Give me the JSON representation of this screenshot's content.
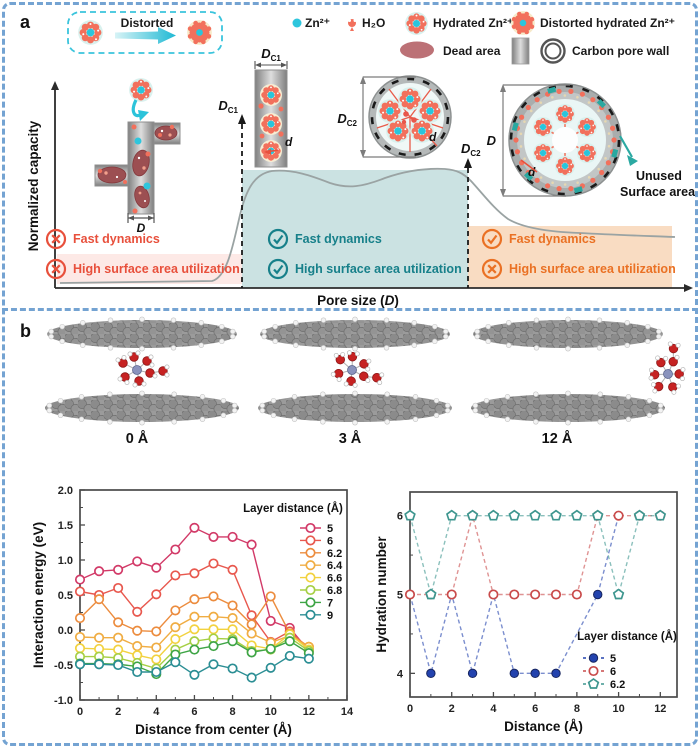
{
  "figure": {
    "border_color": "#74a3d2",
    "background": "#ffffff"
  },
  "panel_a": {
    "label": "a",
    "distorted_label": "Distorted",
    "legend": {
      "zn": "Zn²⁺",
      "h2o": "H₂O",
      "hydrated": "Hydrated Zn²⁺",
      "distorted_hydrated": "Distorted hydrated Zn²⁺",
      "dead_area": "Dead area",
      "carbon_pore_wall": "Carbon pore wall"
    },
    "y_axis_label": "Normalized capacity",
    "x_axis_label": {
      "pre": "Pore size (",
      "d": "D",
      "post": ")"
    },
    "annotations": {
      "dc1": {
        "d": "D",
        "sub": "C1"
      },
      "dc2": {
        "d": "D",
        "sub": "C2"
      },
      "d_pore": "D",
      "d_gap": "d",
      "unused_line1": "Unused",
      "unused_line2": "Surface area"
    },
    "regions": {
      "left": {
        "fast": "Fast dynamics",
        "surface": "High surface area utilization",
        "fast_pass": false,
        "surface_pass": false,
        "color": "#e8503c"
      },
      "middle": {
        "fast": "Fast dynamics",
        "surface": "High surface area utilization",
        "fast_pass": true,
        "surface_pass": true,
        "color": "#17808a"
      },
      "right": {
        "fast": "Fast dynamics",
        "surface": "High surface area utilization",
        "fast_pass": true,
        "surface_pass": false,
        "color": "#ea7124"
      }
    },
    "colors": {
      "teal_region": "#cbe2e2",
      "orange_region": "#f9dcc2",
      "pink_region": "#fde9e6",
      "curve": "#9aa3a3",
      "zn": "#2ec6dd",
      "water": "#f2705c",
      "dead_area": "#bc7176",
      "pore_wall": "#9a9a9a"
    }
  },
  "panel_b": {
    "label": "b",
    "snapshot_labels": [
      "0 Å",
      "3 Å",
      "12 Å"
    ]
  },
  "chart_data": [
    {
      "type": "line",
      "xlabel": "Distance from center (Å)",
      "ylabel": "Interaction energy (eV)",
      "xlim": [
        0,
        14
      ],
      "ylim": [
        -1.0,
        2.0
      ],
      "xticks": [
        0,
        2,
        4,
        6,
        8,
        10,
        12,
        14
      ],
      "yticks": [
        -1.0,
        -0.5,
        0.0,
        0.5,
        1.0,
        1.5,
        2.0
      ],
      "ytick_labels": [
        "-1.0",
        "-0.5",
        "0.0",
        "0.5",
        "1.0",
        "1.5",
        "2.0"
      ],
      "legend_title": "Layer distance (Å)",
      "legend_position": "upper right",
      "grid": false,
      "line_style": "solid",
      "marker": "circle-open",
      "x": [
        0,
        1,
        2,
        3,
        4,
        5,
        6,
        7,
        8,
        9,
        10,
        11,
        12
      ],
      "series": [
        {
          "name": "5",
          "color": "#d23a68",
          "values": [
            0.72,
            0.84,
            0.86,
            0.98,
            0.89,
            1.15,
            1.46,
            1.33,
            1.33,
            1.22,
            0.13,
            0.03,
            -0.3
          ]
        },
        {
          "name": "6",
          "color": "#e8584e",
          "values": [
            0.55,
            0.5,
            0.6,
            0.26,
            0.51,
            0.78,
            0.81,
            0.95,
            0.86,
            0.21,
            -0.17,
            -0.02,
            -0.27
          ]
        },
        {
          "name": "6.2",
          "color": "#ec8c3e",
          "values": [
            0.17,
            0.44,
            0.11,
            -0.01,
            -0.02,
            0.28,
            0.44,
            0.48,
            0.35,
            0.08,
            0.48,
            -0.05,
            -0.24
          ]
        },
        {
          "name": "6.4",
          "color": "#f0ad43",
          "values": [
            -0.1,
            -0.11,
            -0.11,
            -0.23,
            -0.25,
            0.04,
            0.19,
            0.19,
            0.17,
            -0.05,
            -0.18,
            -0.08,
            -0.24
          ]
        },
        {
          "name": "6.6",
          "color": "#f2d23f",
          "values": [
            -0.26,
            -0.27,
            -0.28,
            -0.36,
            -0.42,
            -0.13,
            0.01,
            0.01,
            0.01,
            -0.22,
            -0.27,
            -0.06,
            -0.28
          ]
        },
        {
          "name": "6.8",
          "color": "#a6cf44",
          "values": [
            -0.38,
            -0.38,
            -0.4,
            -0.47,
            -0.55,
            -0.28,
            -0.16,
            -0.12,
            -0.13,
            -0.3,
            -0.28,
            -0.11,
            -0.3
          ]
        },
        {
          "name": "7",
          "color": "#3fa546",
          "values": [
            -0.48,
            -0.48,
            -0.49,
            -0.52,
            -0.63,
            -0.35,
            -0.28,
            -0.23,
            -0.16,
            -0.32,
            -0.27,
            -0.16,
            -0.33
          ]
        },
        {
          "name": "9",
          "color": "#2b8e94",
          "values": [
            -0.49,
            -0.49,
            -0.5,
            -0.6,
            -0.6,
            -0.46,
            -0.64,
            -0.49,
            -0.55,
            -0.68,
            -0.54,
            -0.37,
            -0.41
          ]
        }
      ]
    },
    {
      "type": "line",
      "xlabel": "Distance (Å)",
      "ylabel": "Hydration number",
      "xlim": [
        0,
        12.8
      ],
      "ylim": [
        3.7,
        6.3
      ],
      "xticks": [
        0,
        2,
        4,
        6,
        8,
        10,
        12
      ],
      "yticks": [
        4,
        5,
        6
      ],
      "ytick_labels": [
        "4",
        "5",
        "6"
      ],
      "legend_title": "Layer distance (Å)",
      "legend_position": "lower right",
      "grid": false,
      "line_style": "dashed",
      "line_opacity": 0.6,
      "series": [
        {
          "name": "5",
          "color": "#2343ae",
          "marker": "circle-filled",
          "points": [
            [
              0,
              5
            ],
            [
              1,
              4
            ],
            [
              2,
              5
            ],
            [
              3,
              4
            ],
            [
              4,
              5
            ],
            [
              5,
              4
            ],
            [
              6,
              4
            ],
            [
              7,
              4
            ],
            [
              9,
              5
            ],
            [
              10,
              6
            ]
          ]
        },
        {
          "name": "6",
          "color": "#c94b4b",
          "marker": "circle-open",
          "points": [
            [
              0,
              5
            ],
            [
              1,
              5
            ],
            [
              2,
              5
            ],
            [
              3,
              6
            ],
            [
              4,
              5
            ],
            [
              5,
              5
            ],
            [
              6,
              5
            ],
            [
              7,
              5
            ],
            [
              8,
              5
            ],
            [
              9,
              6
            ],
            [
              10,
              6
            ],
            [
              11,
              6
            ],
            [
              12,
              6
            ]
          ]
        },
        {
          "name": "6.2",
          "color": "#3e968f",
          "marker": "pentagon-open",
          "points": [
            [
              0,
              6
            ],
            [
              1,
              5
            ],
            [
              2,
              6
            ],
            [
              3,
              6
            ],
            [
              4,
              6
            ],
            [
              5,
              6
            ],
            [
              6,
              6
            ],
            [
              7,
              6
            ],
            [
              8,
              6
            ],
            [
              9,
              6
            ],
            [
              10,
              5
            ],
            [
              11,
              6
            ],
            [
              12,
              6
            ]
          ]
        }
      ]
    }
  ]
}
